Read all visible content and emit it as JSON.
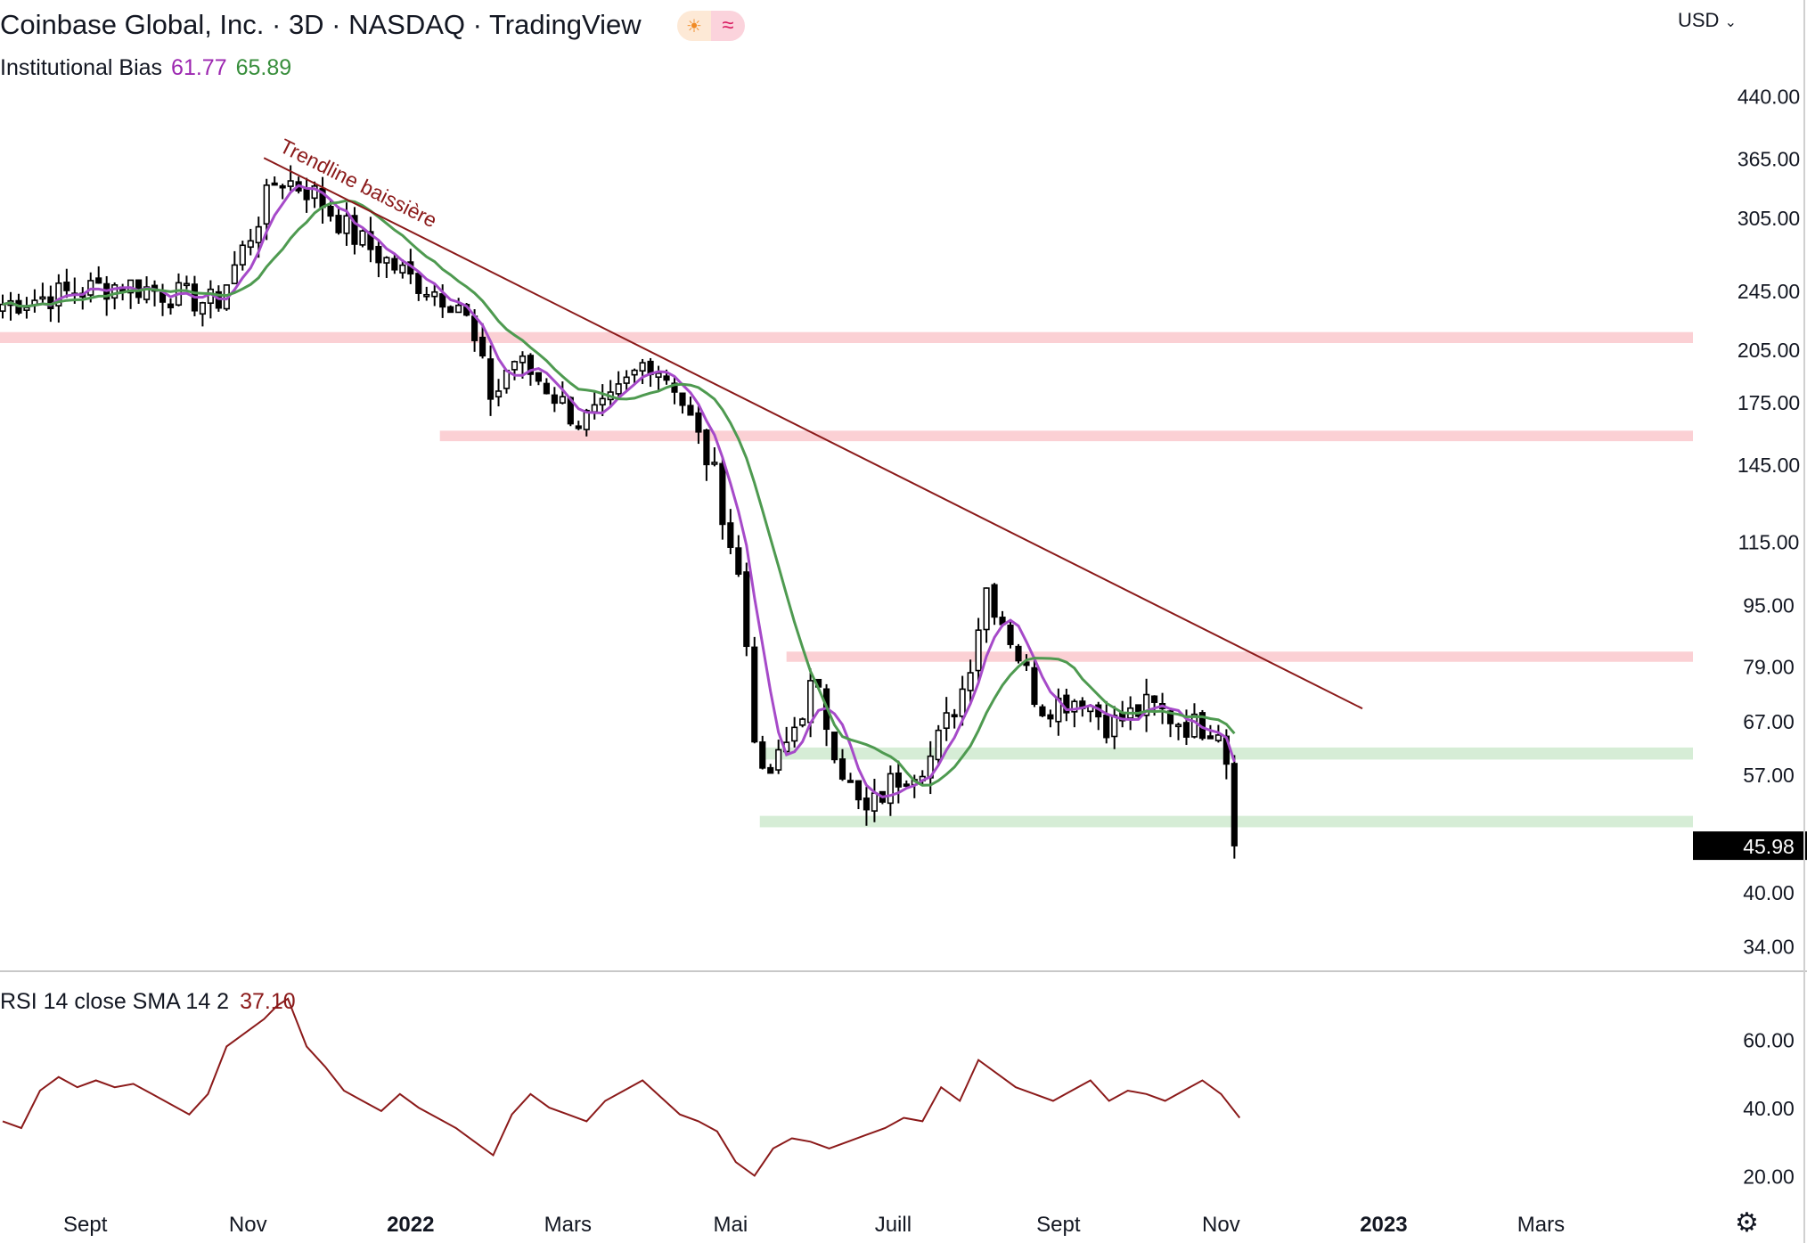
{
  "header": {
    "title": "Coinbase Global, Inc. · 3D · NASDAQ · TradingView",
    "badge_sun_icon": "sun-icon",
    "badge_wave_icon": "wave-icon",
    "currency": "USD",
    "currency_icon": "chevron-down-icon"
  },
  "indicator": {
    "name": "Institutional Bias",
    "value1": "61.77",
    "value2": "65.89",
    "color1": "#a64ac9",
    "color2": "#4e9a50"
  },
  "rsi": {
    "label": "RSI 14 close SMA 14 2",
    "value": "37.10",
    "color": "#8b1a1a"
  },
  "footer": {
    "settings_icon": "gear-icon"
  },
  "chart_data": [
    {
      "type": "candlestick",
      "title": "Coinbase Global, Inc. · 3D · NASDAQ · TradingView",
      "scale": "log",
      "y_ticks": [
        440,
        365,
        305,
        245,
        205,
        175,
        145,
        115,
        95,
        79,
        67,
        57,
        40,
        34
      ],
      "y_tick_labels": [
        "440.00",
        "365.00",
        "305.00",
        "245.00",
        "205.00",
        "175.00",
        "145.00",
        "115.00",
        "95.00",
        "79.00",
        "67.00",
        "57.00",
        "40.00",
        "34.00"
      ],
      "ylim": [
        31.5,
        500
      ],
      "x_labels": [
        {
          "label": "Sept",
          "date": "2021-09-01",
          "bold": false
        },
        {
          "label": "Nov",
          "date": "2021-11-01",
          "bold": false
        },
        {
          "label": "2022",
          "date": "2022-01-01",
          "bold": true
        },
        {
          "label": "Mars",
          "date": "2022-03-01",
          "bold": false
        },
        {
          "label": "Mai",
          "date": "2022-05-01",
          "bold": false
        },
        {
          "label": "Juill",
          "date": "2022-07-01",
          "bold": false
        },
        {
          "label": "Sept",
          "date": "2022-09-01",
          "bold": false
        },
        {
          "label": "Nov",
          "date": "2022-11-01",
          "bold": false
        },
        {
          "label": "2023",
          "date": "2023-01-01",
          "bold": true
        },
        {
          "label": "Mars",
          "date": "2023-03-01",
          "bold": false
        }
      ],
      "xlim": [
        "2021-07-31",
        "2023-04-27"
      ],
      "last_price": "45.98",
      "last_price_value": 45.98,
      "candle_color": "#000000",
      "anchors": [
        {
          "date": "2021-08-01",
          "value": 235
        },
        {
          "date": "2021-09-15",
          "value": 250
        },
        {
          "date": "2021-10-20",
          "value": 235
        },
        {
          "date": "2021-11-02",
          "value": 290
        },
        {
          "date": "2021-11-12",
          "value": 345
        },
        {
          "date": "2021-11-25",
          "value": 330
        },
        {
          "date": "2021-12-10",
          "value": 290
        },
        {
          "date": "2021-12-31",
          "value": 255
        },
        {
          "date": "2022-01-20",
          "value": 235
        },
        {
          "date": "2022-02-01",
          "value": 175
        },
        {
          "date": "2022-02-08",
          "value": 200
        },
        {
          "date": "2022-02-20",
          "value": 185
        },
        {
          "date": "2022-03-05",
          "value": 165
        },
        {
          "date": "2022-03-15",
          "value": 170
        },
        {
          "date": "2022-03-31",
          "value": 200
        },
        {
          "date": "2022-04-10",
          "value": 185
        },
        {
          "date": "2022-04-25",
          "value": 140
        },
        {
          "date": "2022-05-05",
          "value": 100
        },
        {
          "date": "2022-05-12",
          "value": 55
        },
        {
          "date": "2022-05-20",
          "value": 60
        },
        {
          "date": "2022-06-01",
          "value": 75
        },
        {
          "date": "2022-06-12",
          "value": 58
        },
        {
          "date": "2022-06-20",
          "value": 50
        },
        {
          "date": "2022-07-01",
          "value": 56
        },
        {
          "date": "2022-07-15",
          "value": 60
        },
        {
          "date": "2022-07-28",
          "value": 75
        },
        {
          "date": "2022-08-05",
          "value": 100
        },
        {
          "date": "2022-08-15",
          "value": 85
        },
        {
          "date": "2022-08-25",
          "value": 70
        },
        {
          "date": "2022-09-10",
          "value": 72
        },
        {
          "date": "2022-09-20",
          "value": 66
        },
        {
          "date": "2022-10-05",
          "value": 70
        },
        {
          "date": "2022-10-20",
          "value": 66
        },
        {
          "date": "2022-11-01",
          "value": 66
        },
        {
          "date": "2022-11-04",
          "value": 57
        },
        {
          "date": "2022-11-08",
          "value": 46
        }
      ],
      "annotations": [
        {
          "type": "trendline",
          "label": "Trendline baissière",
          "color": "#8b1a1a",
          "from": {
            "date": "2021-11-07",
            "value": 365
          },
          "to": {
            "date": "2022-12-24",
            "value": 69.5
          }
        },
        {
          "type": "zone",
          "color": "#fbd0d4",
          "from_date": "2021-07-31",
          "to_date": "2023-04-27",
          "low": 209,
          "high": 216
        },
        {
          "type": "zone",
          "color": "#fbd0d4",
          "from_date": "2022-01-12",
          "to_date": "2023-04-27",
          "low": 155.5,
          "high": 160.5
        },
        {
          "type": "zone",
          "color": "#fbd0d4",
          "from_date": "2022-05-22",
          "to_date": "2023-04-27",
          "low": 80,
          "high": 82.5
        },
        {
          "type": "zone",
          "color": "#d6edd6",
          "from_date": "2022-05-12",
          "to_date": "2023-04-27",
          "low": 59.6,
          "high": 61.8
        },
        {
          "type": "zone",
          "color": "#d6edd6",
          "from_date": "2022-05-12",
          "to_date": "2023-04-27",
          "low": 48.6,
          "high": 50.3
        }
      ],
      "series": [
        {
          "name": "Institutional Bias",
          "color": "#a64ac9",
          "length": 5
        },
        {
          "name": "Institutional Bias",
          "color": "#4e9a50",
          "length": 12
        }
      ]
    },
    {
      "type": "line",
      "title": "RSI 14 close SMA 14 2",
      "color": "#8b1a1a",
      "y_ticks": [
        60,
        40,
        20
      ],
      "y_tick_labels": [
        "60.00",
        "40.00",
        "20.00"
      ],
      "ylim": [
        12,
        78
      ],
      "x_dates": [
        "2021-08-01",
        "2021-08-08",
        "2021-08-15",
        "2021-08-22",
        "2021-08-29",
        "2021-09-05",
        "2021-09-12",
        "2021-09-19",
        "2021-09-26",
        "2021-10-03",
        "2021-10-10",
        "2021-10-17",
        "2021-10-24",
        "2021-10-31",
        "2021-11-07",
        "2021-11-12",
        "2021-11-16",
        "2021-11-23",
        "2021-11-30",
        "2021-12-07",
        "2021-12-14",
        "2021-12-21",
        "2021-12-28",
        "2022-01-04",
        "2022-01-11",
        "2022-01-18",
        "2022-01-25",
        "2022-02-01",
        "2022-02-08",
        "2022-02-15",
        "2022-02-22",
        "2022-03-01",
        "2022-03-08",
        "2022-03-15",
        "2022-03-22",
        "2022-03-29",
        "2022-04-05",
        "2022-04-12",
        "2022-04-19",
        "2022-04-26",
        "2022-05-03",
        "2022-05-10",
        "2022-05-17",
        "2022-05-24",
        "2022-05-31",
        "2022-06-07",
        "2022-06-14",
        "2022-06-21",
        "2022-06-28",
        "2022-07-05",
        "2022-07-12",
        "2022-07-19",
        "2022-07-26",
        "2022-08-02",
        "2022-08-09",
        "2022-08-16",
        "2022-08-23",
        "2022-08-30",
        "2022-09-06",
        "2022-09-13",
        "2022-09-20",
        "2022-09-27",
        "2022-10-04",
        "2022-10-11",
        "2022-10-18",
        "2022-10-25",
        "2022-11-01",
        "2022-11-08"
      ],
      "values": [
        36,
        34,
        45,
        49,
        46,
        48,
        46,
        47,
        44,
        41,
        38,
        44,
        58,
        62,
        66,
        70,
        72,
        58,
        52,
        45,
        42,
        39,
        44,
        40,
        37,
        34,
        30,
        26,
        38,
        44,
        40,
        38,
        36,
        42,
        45,
        48,
        43,
        38,
        36,
        33,
        24,
        20,
        28,
        31,
        30,
        28,
        30,
        32,
        34,
        37,
        36,
        46,
        42,
        54,
        50,
        46,
        44,
        42,
        45,
        48,
        42,
        45,
        44,
        42,
        45,
        48,
        44,
        37
      ]
    }
  ]
}
